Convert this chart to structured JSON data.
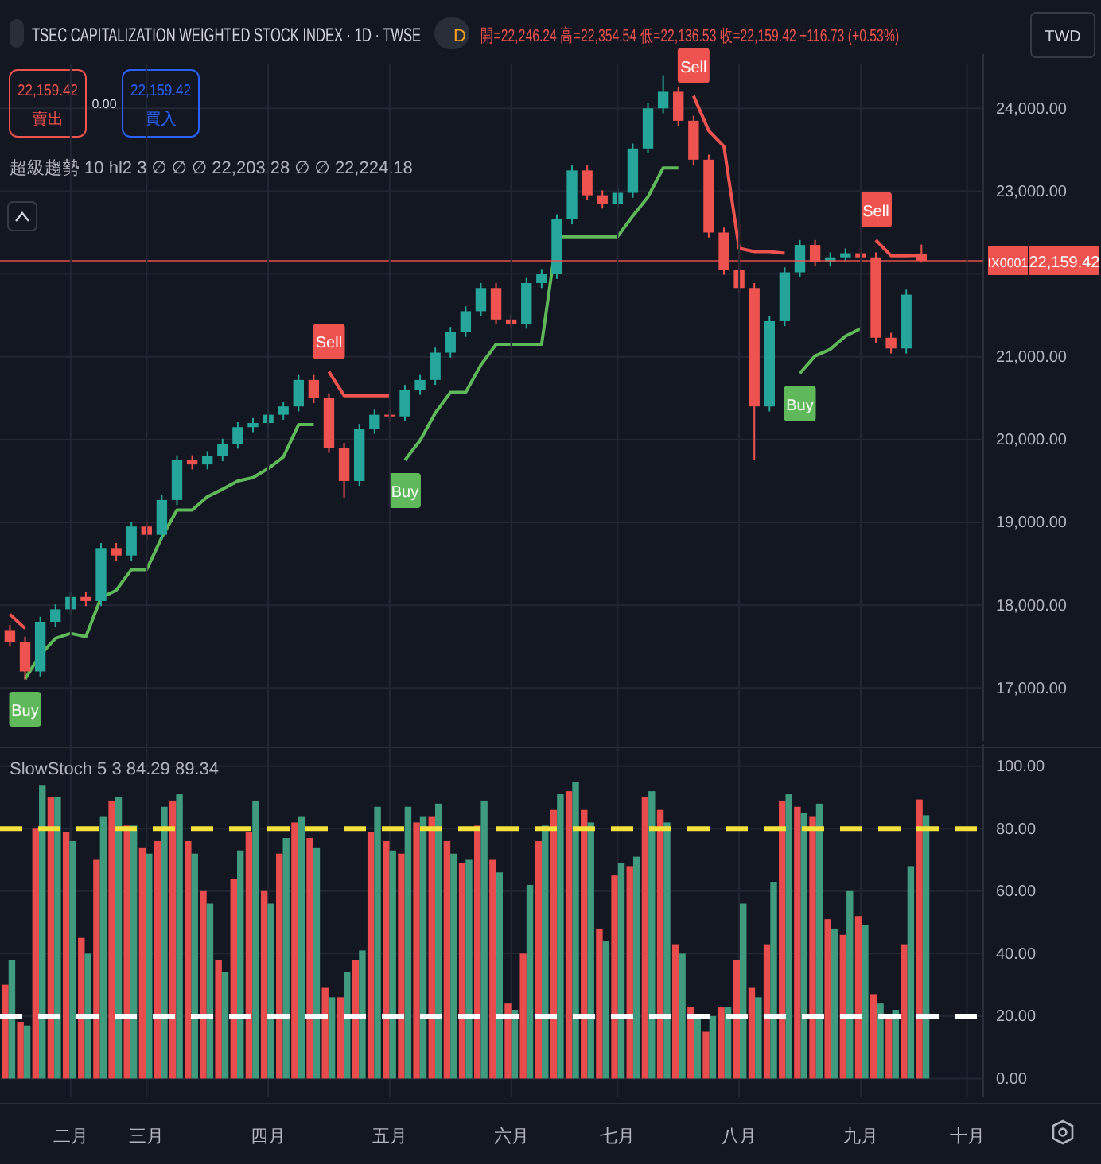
{
  "chart_data": [
    {
      "type": "candlestick",
      "title": "TSEC CAPITALIZATION WEIGHTED STOCK INDEX · 1D · TWSE",
      "subtitle": "開=22,246.24 高=22,354.54 低=22,136.53 收=22,159.42 +116.73 (+0.53%)",
      "annotations": [
        "D",
        "22,159.42",
        "賣出",
        "0.00",
        "22,159.42",
        "買入",
        "超級趨勢 10 hl2 3 ∅ ∅ ∅ 22,203.28 ∅ ∅ 22,224.18",
        "TWD",
        "Buy",
        "Sell",
        "Buy",
        "Sell",
        "Buy",
        "Sell"
      ],
      "categories": [
        null,
        null,
        null,
        null,
        null,
        null,
        null,
        null,
        null,
        null,
        null,
        null,
        null,
        null,
        null,
        null,
        null,
        null,
        null,
        null,
        null,
        null,
        null,
        null,
        null,
        null,
        null,
        null,
        null,
        null,
        null,
        null,
        null,
        null,
        null,
        null,
        null,
        null,
        null,
        null,
        null,
        null,
        null,
        null,
        null,
        null,
        null,
        null,
        null,
        null,
        null,
        null,
        null,
        null,
        null,
        null,
        null,
        null,
        null,
        null,
        null,
        null,
        null,
        null
      ],
      "ohlc": [
        [
          17700,
          17760,
          17500,
          17560
        ],
        [
          17560,
          17620,
          17100,
          17200
        ],
        [
          17200,
          17860,
          17140,
          17800
        ],
        [
          17800,
          18010,
          17740,
          17950
        ],
        [
          17950,
          18160,
          17890,
          18100
        ],
        [
          18100,
          18160,
          17990,
          18050
        ],
        [
          18050,
          18750,
          17990,
          18690
        ],
        [
          18690,
          18750,
          18540,
          18600
        ],
        [
          18600,
          19010,
          18540,
          18950
        ],
        [
          18950,
          19010,
          18790,
          18850
        ],
        [
          18850,
          19330,
          18790,
          19270
        ],
        [
          19270,
          19810,
          19210,
          19750
        ],
        [
          19750,
          19810,
          19640,
          19700
        ],
        [
          19700,
          19860,
          19640,
          19800
        ],
        [
          19800,
          20010,
          19740,
          19950
        ],
        [
          19950,
          20210,
          19890,
          20150
        ],
        [
          20150,
          20260,
          20090,
          20200
        ],
        [
          20200,
          20360,
          20140,
          20300
        ],
        [
          20300,
          20460,
          20240,
          20400
        ],
        [
          20400,
          20780,
          20340,
          20720
        ],
        [
          20720,
          20780,
          20440,
          20500
        ],
        [
          20500,
          20560,
          19840,
          19900
        ],
        [
          19900,
          19960,
          19300,
          19500
        ],
        [
          19500,
          20190,
          19440,
          20130
        ],
        [
          20130,
          20360,
          20070,
          20300
        ],
        [
          20300,
          20360,
          20220,
          20280
        ],
        [
          20280,
          20660,
          20220,
          20600
        ],
        [
          20600,
          20780,
          20540,
          20720
        ],
        [
          20720,
          21110,
          20660,
          21050
        ],
        [
          21050,
          21360,
          20990,
          21300
        ],
        [
          21300,
          21610,
          21240,
          21550
        ],
        [
          21550,
          21890,
          21490,
          21830
        ],
        [
          21830,
          21890,
          21390,
          21450
        ],
        [
          21450,
          21510,
          21340,
          21400
        ],
        [
          21400,
          21950,
          21340,
          21890
        ],
        [
          21890,
          22060,
          21830,
          22000
        ],
        [
          22000,
          22720,
          21940,
          22660
        ],
        [
          22660,
          23310,
          22600,
          23250
        ],
        [
          23250,
          23310,
          22890,
          22950
        ],
        [
          22950,
          23010,
          22790,
          22850
        ],
        [
          22850,
          23040,
          22790,
          22980
        ],
        [
          22980,
          23575,
          22920,
          23515
        ],
        [
          23515,
          24060,
          23455,
          24000
        ],
        [
          24000,
          24400,
          23940,
          24200
        ],
        [
          24200,
          24260,
          23790,
          23850
        ],
        [
          23850,
          23910,
          23320,
          23380
        ],
        [
          23380,
          23440,
          22440,
          22500
        ],
        [
          22500,
          22560,
          21990,
          22050
        ],
        [
          22050,
          22600,
          21770,
          21830
        ],
        [
          21830,
          21890,
          19750,
          20400
        ],
        [
          20400,
          21490,
          20340,
          21430
        ],
        [
          21430,
          22080,
          21370,
          22020
        ],
        [
          22020,
          22410,
          21960,
          22350
        ],
        [
          22350,
          22410,
          22090,
          22150
        ],
        [
          22150,
          22260,
          22090,
          22200
        ],
        [
          22200,
          22310,
          22140,
          22250
        ],
        [
          22250,
          22310,
          22140,
          22200
        ],
        [
          22200,
          22260,
          21170,
          21230
        ],
        [
          21230,
          21290,
          21040,
          21100
        ],
        [
          21100,
          21810,
          21040,
          21750
        ],
        [
          22246.24,
          22354.54,
          22136.53,
          22159.42
        ],
        null,
        null,
        null
      ],
      "series": [
        {
          "type": "line",
          "color": "#5fb85a",
          "values": [
            null,
            17110,
            17400,
            17600,
            17660,
            17620,
            18090,
            18180,
            18430,
            18430,
            18820,
            19150,
            19150,
            19310,
            19400,
            19500,
            19540,
            19650,
            19790,
            20180,
            20180,
            null,
            null,
            null,
            null,
            null,
            19750,
            19990,
            20320,
            20570,
            20570,
            20900,
            21150,
            21150,
            21150,
            21150,
            22450,
            22450,
            22450,
            22450,
            22450,
            22700,
            22930,
            23280,
            23280,
            null,
            null,
            null,
            null,
            null,
            null,
            null,
            20800,
            21010,
            21090,
            21250,
            21340,
            null,
            null,
            null,
            null,
            null,
            null,
            null
          ]
        },
        {
          "type": "line",
          "color": "#ef5350",
          "values": [
            17890,
            17720,
            null,
            null,
            null,
            null,
            null,
            null,
            null,
            null,
            null,
            null,
            null,
            null,
            null,
            null,
            null,
            null,
            null,
            null,
            null,
            20820,
            20530,
            20530,
            20530,
            20530,
            null,
            null,
            null,
            null,
            null,
            null,
            null,
            null,
            null,
            null,
            null,
            null,
            null,
            null,
            null,
            null,
            null,
            null,
            null,
            24150,
            23730,
            23540,
            22310,
            22270,
            22270,
            22250,
            null,
            null,
            null,
            null,
            null,
            22410,
            22220,
            22220,
            22224.18,
            null,
            null,
            null
          ]
        }
      ],
      "ylim": [
        16360,
        24540
      ],
      "yticks": [
        {
          "value": 17000,
          "label": "17,000.00"
        },
        {
          "value": 18000,
          "label": "18,000.00"
        },
        {
          "value": 19000,
          "label": "19,000.00"
        },
        {
          "value": 20000,
          "label": "20,000.00"
        },
        {
          "value": 21000,
          "label": "21,000.00"
        },
        {
          "value": 22000,
          "label": null
        },
        {
          "value": 23000,
          "label": "23,000.00"
        },
        {
          "value": 24000,
          "label": "24,000.00"
        }
      ],
      "ref_lines": [
        {
          "axis": "y",
          "value": 22159.42,
          "label": "IX0001",
          "color": "#ef5350"
        }
      ],
      "grid": "y",
      "tick_labels": "y",
      "line_style": "solid"
    },
    {
      "type": "bar",
      "title": "SlowStoch 5 3 84.29 89.34",
      "categories": [
        null,
        null,
        null,
        null,
        "二月",
        null,
        null,
        null,
        null,
        "三月",
        null,
        null,
        null,
        null,
        null,
        null,
        null,
        "四月",
        null,
        null,
        null,
        null,
        null,
        null,
        null,
        "五月",
        null,
        null,
        null,
        null,
        null,
        null,
        null,
        "六月",
        null,
        null,
        null,
        null,
        null,
        null,
        "七月",
        null,
        null,
        null,
        null,
        null,
        null,
        null,
        "八月",
        null,
        null,
        null,
        null,
        null,
        null,
        null,
        "九月",
        null,
        null,
        null,
        null,
        null,
        null,
        "十月"
      ],
      "series": [
        {
          "color": "#e84c4c",
          "values": [
            30,
            18,
            80,
            90,
            79,
            45,
            70,
            89,
            81,
            74,
            76,
            89,
            76,
            60,
            38,
            64,
            79,
            60,
            72,
            82,
            77,
            29,
            26,
            38,
            79,
            76,
            72,
            82,
            84,
            76,
            69,
            81,
            70,
            24,
            40,
            76,
            86,
            92,
            86,
            48,
            65,
            68,
            90,
            86,
            43,
            23,
            15,
            23,
            38,
            29,
            43,
            89,
            87,
            84,
            51,
            46,
            52,
            27,
            20,
            43,
            89.34,
            null,
            null,
            null
          ]
        },
        {
          "color": "#3f9a7e",
          "values": [
            38,
            17,
            94,
            90,
            76,
            40,
            84,
            90,
            81,
            72,
            87,
            91,
            72,
            56,
            34,
            73,
            89,
            56,
            77,
            84,
            74,
            26,
            34,
            41,
            87,
            73,
            87,
            84,
            88,
            72,
            70,
            89,
            66,
            22,
            62,
            81,
            91,
            95,
            82,
            44,
            69,
            71,
            92,
            82,
            40,
            20,
            20,
            23,
            56,
            26,
            63,
            91,
            85,
            88,
            48,
            60,
            49,
            24,
            22,
            68,
            84.29,
            null,
            null,
            null
          ]
        }
      ],
      "ylim": [
        -6,
        104
      ],
      "yticks": [
        {
          "value": 0,
          "label": "0.00"
        },
        {
          "value": 20,
          "label": "20.00"
        },
        {
          "value": 40,
          "label": "40.00"
        },
        {
          "value": 60,
          "label": "60.00"
        },
        {
          "value": 80,
          "label": "80.00"
        },
        {
          "value": 100,
          "label": "100.00"
        }
      ],
      "ref_lines": [
        {
          "axis": "y",
          "value": 80,
          "color": "#f5e13c",
          "line_style": "dashed"
        },
        {
          "axis": "y",
          "value": 20,
          "color": "#ffffff",
          "line_style": "dashed"
        }
      ],
      "grid": true
    }
  ]
}
